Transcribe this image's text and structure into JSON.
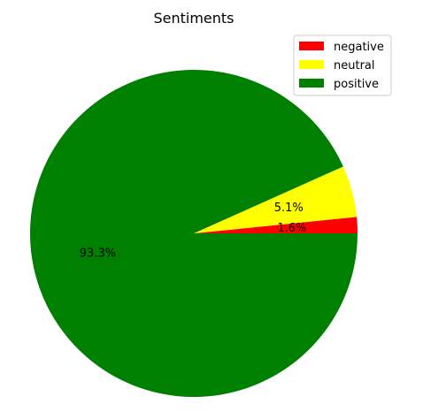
{
  "chart_data": {
    "type": "pie",
    "title": "Sentiments",
    "labels": [
      "negative",
      "neutral",
      "positive"
    ],
    "values": [
      1.6,
      5.1,
      93.3
    ],
    "percent_labels": [
      "1.6%",
      "5.1%",
      "93.3%"
    ],
    "colors": [
      "#ff0000",
      "#ffff00",
      "#008000"
    ],
    "start_angle_deg": 0,
    "direction": "counterclockwise",
    "legend": {
      "placement": "top-right",
      "entries": [
        "negative",
        "neutral",
        "positive"
      ]
    }
  }
}
